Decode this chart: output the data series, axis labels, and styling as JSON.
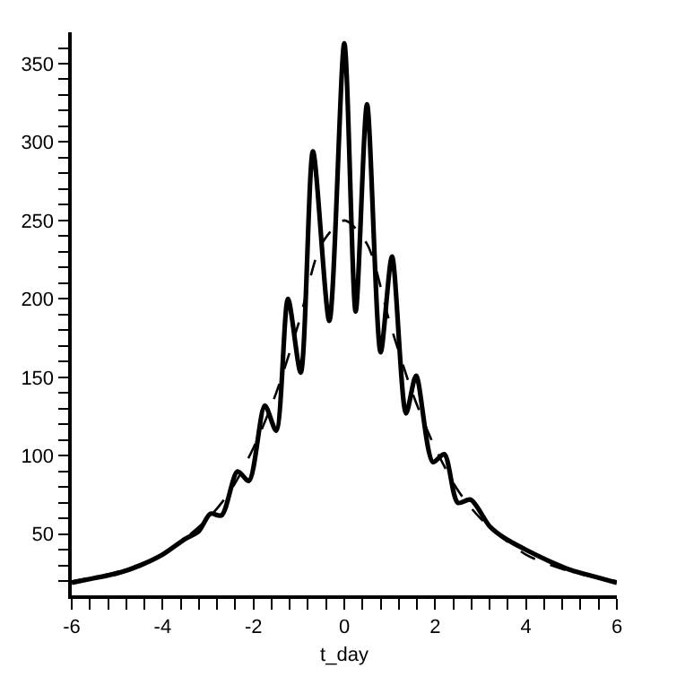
{
  "chart_data": {
    "type": "line",
    "xlabel": "t_day",
    "marker": "none",
    "xlim": [
      -6,
      6
    ],
    "ylim": [
      11,
      370
    ],
    "xticks": [
      -6,
      {
        "value": -5.6,
        "label": null
      },
      {
        "value": -5.2,
        "label": null
      },
      {
        "value": -4.8,
        "label": null
      },
      {
        "value": -4.4,
        "label": null
      },
      -4,
      {
        "value": -3.6,
        "label": null
      },
      {
        "value": -3.2,
        "label": null
      },
      {
        "value": -2.8,
        "label": null
      },
      {
        "value": -2.4,
        "label": null
      },
      -2,
      {
        "value": -1.6,
        "label": null
      },
      {
        "value": -1.2,
        "label": null
      },
      {
        "value": -0.8,
        "label": null
      },
      {
        "value": -0.4,
        "label": null
      },
      0,
      {
        "value": 0.4,
        "label": null
      },
      {
        "value": 0.8,
        "label": null
      },
      {
        "value": 1.2,
        "label": null
      },
      {
        "value": 1.6,
        "label": null
      },
      2,
      {
        "value": 2.4,
        "label": null
      },
      {
        "value": 2.8,
        "label": null
      },
      {
        "value": 3.2,
        "label": null
      },
      {
        "value": 3.6,
        "label": null
      },
      4,
      {
        "value": 4.4,
        "label": null
      },
      {
        "value": 4.8,
        "label": null
      },
      {
        "value": 5.2,
        "label": null
      },
      {
        "value": 5.6,
        "label": null
      },
      6
    ],
    "yticks": [
      {
        "value": 20,
        "label": null
      },
      {
        "value": 30,
        "label": null
      },
      {
        "value": 40,
        "label": null
      },
      50,
      {
        "value": 60,
        "label": null
      },
      {
        "value": 70,
        "label": null
      },
      {
        "value": 80,
        "label": null
      },
      {
        "value": 90,
        "label": null
      },
      100,
      {
        "value": 110,
        "label": null
      },
      {
        "value": 120,
        "label": null
      },
      {
        "value": 130,
        "label": null
      },
      {
        "value": 140,
        "label": null
      },
      150,
      {
        "value": 160,
        "label": null
      },
      {
        "value": 170,
        "label": null
      },
      {
        "value": 180,
        "label": null
      },
      {
        "value": 190,
        "label": null
      },
      200,
      {
        "value": 210,
        "label": null
      },
      {
        "value": 220,
        "label": null
      },
      {
        "value": 230,
        "label": null
      },
      {
        "value": 240,
        "label": null
      },
      250,
      {
        "value": 260,
        "label": null
      },
      {
        "value": 270,
        "label": null
      },
      {
        "value": 280,
        "label": null
      },
      {
        "value": 290,
        "label": null
      },
      300,
      {
        "value": 310,
        "label": null
      },
      {
        "value": 320,
        "label": null
      },
      {
        "value": 330,
        "label": null
      },
      {
        "value": 340,
        "label": null
      },
      350,
      {
        "value": 360,
        "label": null
      }
    ],
    "series": [
      {
        "color": "#000000",
        "line_style": "solid",
        "x": [
          -6,
          -5.5,
          -5,
          -4.5,
          -4,
          -3.5,
          -3.2,
          -2.95,
          -2.7,
          -2.35,
          -2.1,
          -1.75,
          -1.5,
          -1.24,
          -0.96,
          -0.69,
          -0.33,
          0,
          0.25,
          0.5,
          0.8,
          1.05,
          1.36,
          1.58,
          1.95,
          2.2,
          2.5,
          2.78,
          3.2,
          3.5,
          4,
          4.5,
          5,
          5.5,
          6
        ],
        "values": [
          19,
          22,
          25,
          30,
          37,
          47,
          52,
          63,
          62,
          90,
          84,
          132,
          116,
          200,
          153,
          294,
          186,
          363,
          192,
          324,
          166,
          227,
          127,
          151,
          96,
          101,
          70,
          72,
          55,
          48,
          40,
          33,
          27,
          23,
          19
        ]
      },
      {
        "color": "#000000",
        "line_style": "dashed",
        "x": [
          -6,
          -5,
          -4,
          -3,
          -2.5,
          -2,
          -1.5,
          -1,
          -0.5,
          0,
          0.5,
          1,
          1.5,
          2,
          2.5,
          3,
          4,
          5,
          6
        ],
        "values": [
          20,
          26,
          37,
          60,
          78,
          105,
          140,
          185,
          235,
          250,
          235,
          185,
          140,
          105,
          78,
          60,
          37,
          26,
          20
        ]
      }
    ]
  }
}
